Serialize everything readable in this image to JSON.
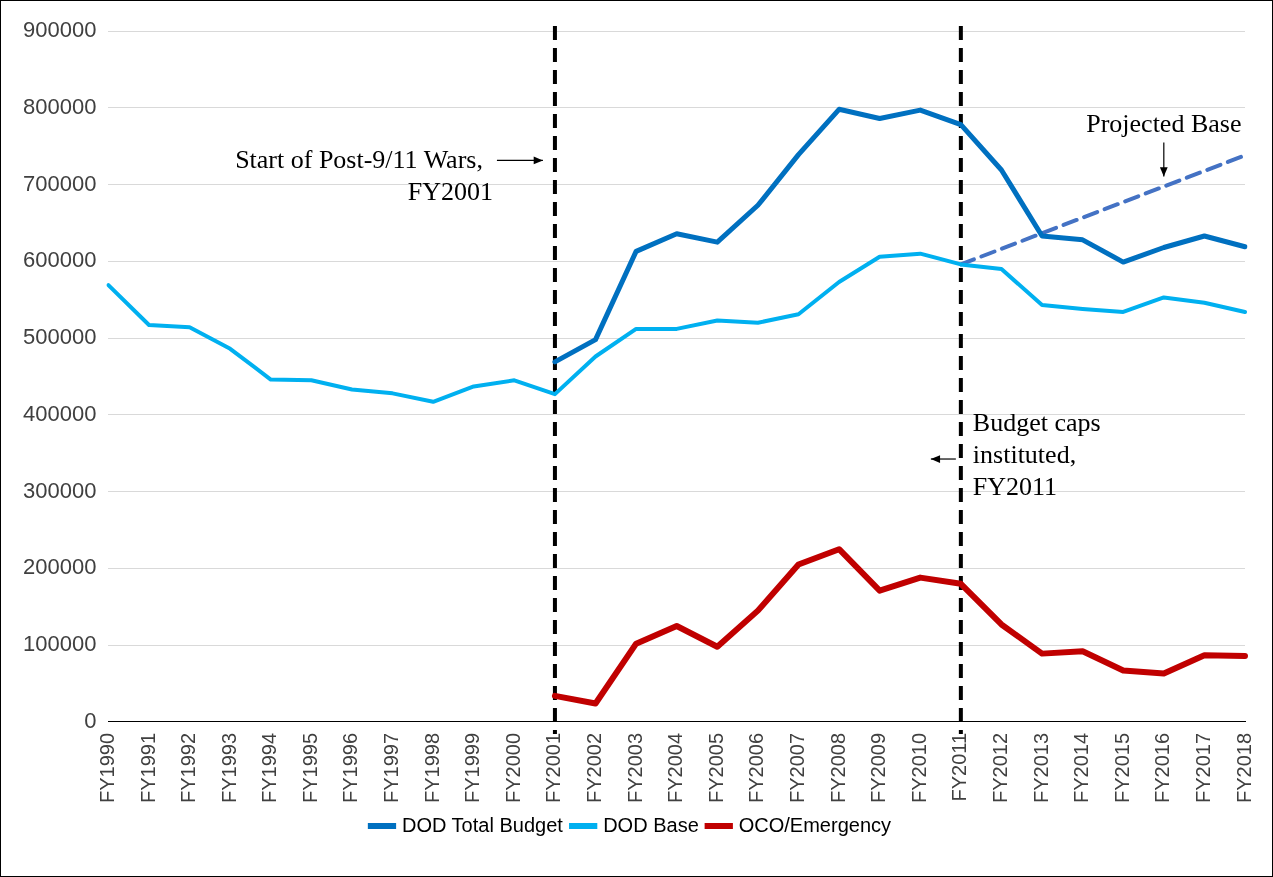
{
  "chart_data": {
    "type": "line",
    "categories": [
      "FY1990",
      "FY1991",
      "FY1992",
      "FY1993",
      "FY1994",
      "FY1995",
      "FY1996",
      "FY1997",
      "FY1998",
      "FY1999",
      "FY2000",
      "FY2001",
      "FY2002",
      "FY2003",
      "FY2004",
      "FY2005",
      "FY2006",
      "FY2007",
      "FY2008",
      "FY2009",
      "FY2010",
      "FY2011",
      "FY2012",
      "FY2013",
      "FY2014",
      "FY2015",
      "FY2016",
      "FY2017",
      "FY2018"
    ],
    "series": [
      {
        "name": "DOD Total Budget",
        "color": "#0070c0",
        "values": [
          null,
          null,
          null,
          null,
          null,
          null,
          null,
          null,
          null,
          null,
          null,
          469000,
          498000,
          613000,
          636000,
          625000,
          673000,
          739000,
          798000,
          786000,
          797000,
          778000,
          719000,
          633000,
          628000,
          599000,
          618000,
          633000,
          619000
        ]
      },
      {
        "name": "DOD Base",
        "color": "#00b0f0",
        "values": [
          569000,
          517000,
          514000,
          486000,
          446000,
          445000,
          433000,
          428000,
          417000,
          437000,
          445000,
          427000,
          476000,
          512000,
          512000,
          523000,
          520000,
          531000,
          573000,
          606000,
          610000,
          596000,
          590000,
          543000,
          538000,
          534000,
          553000,
          546000,
          534000
        ]
      },
      {
        "name": "OCO/Emergency",
        "color": "#c00000",
        "values": [
          null,
          null,
          null,
          null,
          null,
          null,
          null,
          null,
          null,
          null,
          null,
          34000,
          24000,
          102000,
          125000,
          98000,
          145000,
          205000,
          225000,
          171000,
          188000,
          180000,
          127000,
          89000,
          92000,
          67000,
          63000,
          87000,
          86000
        ]
      },
      {
        "color": "#4472c4",
        "line_style": "dashed",
        "values": [
          null,
          null,
          null,
          null,
          null,
          null,
          null,
          null,
          null,
          null,
          null,
          null,
          null,
          null,
          null,
          null,
          null,
          null,
          null,
          null,
          null,
          596000,
          null,
          null,
          null,
          null,
          null,
          null,
          738000
        ]
      }
    ],
    "ylim": [
      0,
      900000
    ],
    "yticks": [
      0,
      100000,
      200000,
      300000,
      400000,
      500000,
      600000,
      700000,
      800000,
      900000
    ],
    "grid": "y",
    "legend": "bottom",
    "marker": "none",
    "line_style": "solid",
    "ref_lines": [
      {
        "axis": "x",
        "value": "FY2001",
        "label": "Start of Post-9/11 Wars, FY2001",
        "color": "#000000",
        "line_style": "dashed"
      },
      {
        "axis": "x",
        "value": "FY2011",
        "label": "Budget caps instituted, FY2011",
        "color": "#000000",
        "line_style": "dashed"
      }
    ],
    "annotations": [
      {
        "text": "Projected Base",
        "x": "FY2016",
        "y": 700000
      }
    ]
  }
}
